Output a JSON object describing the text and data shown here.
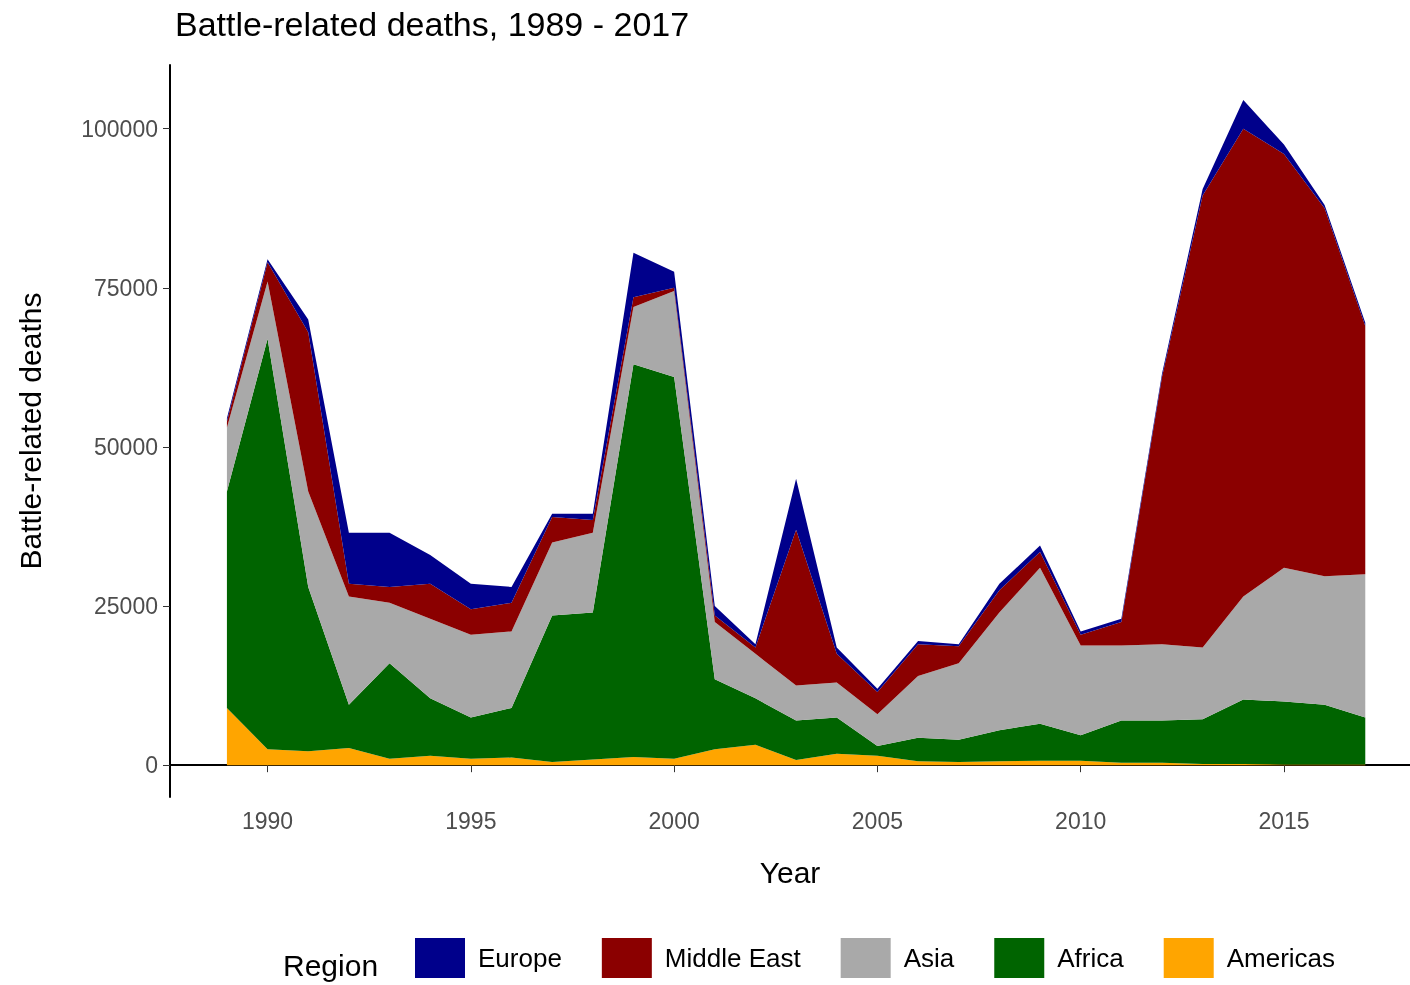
{
  "chart_data": {
    "type": "area",
    "title": "Battle-related deaths, 1989 - 2017",
    "xlabel": "Year",
    "ylabel": "Battle-related deaths",
    "legend_title": "Region",
    "stacked": true,
    "legend": "bottom",
    "grid": false,
    "x": [
      1989,
      1990,
      1991,
      1992,
      1993,
      1994,
      1995,
      1996,
      1997,
      1998,
      1999,
      2000,
      2001,
      2002,
      2003,
      2004,
      2005,
      2006,
      2007,
      2008,
      2009,
      2010,
      2011,
      2012,
      2013,
      2014,
      2015,
      2016,
      2017
    ],
    "xlim": [
      1987.6,
      2018.1
    ],
    "xticks": [
      1990,
      1995,
      2000,
      2005,
      2010,
      2015
    ],
    "ylim": [
      -5000,
      110000
    ],
    "yticks": [
      0,
      25000,
      50000,
      75000,
      100000
    ],
    "series": [
      {
        "name": "Americas",
        "color": "#ffa500",
        "values": [
          9000,
          2500,
          2200,
          2700,
          1000,
          1500,
          1000,
          1200,
          500,
          900,
          1300,
          1000,
          2500,
          3200,
          800,
          1800,
          1500,
          600,
          500,
          600,
          700,
          700,
          400,
          400,
          200,
          200,
          100,
          100,
          100
        ]
      },
      {
        "name": "Africa",
        "color": "#006400",
        "values": [
          34000,
          64500,
          25800,
          6800,
          15000,
          9000,
          6500,
          7800,
          23000,
          23100,
          61700,
          60000,
          11000,
          7300,
          6200,
          5700,
          1500,
          3700,
          3500,
          4900,
          5800,
          4000,
          6600,
          6600,
          7000,
          10100,
          9900,
          9400,
          7400
        ]
      },
      {
        "name": "Asia",
        "color": "#a9a9a9",
        "values": [
          10000,
          9000,
          15000,
          17000,
          9500,
          12500,
          13000,
          12000,
          11500,
          12500,
          9000,
          13500,
          9000,
          7000,
          5500,
          5500,
          5000,
          9700,
          12000,
          18500,
          24500,
          14100,
          11800,
          12000,
          11300,
          16200,
          21000,
          20200,
          22500
        ]
      },
      {
        "name": "Middle East",
        "color": "#8b0000",
        "values": [
          1000,
          3000,
          25000,
          2000,
          2500,
          5500,
          4000,
          4500,
          4000,
          2000,
          1500,
          500,
          1000,
          1000,
          24500,
          4500,
          3500,
          5000,
          2700,
          3500,
          2500,
          1700,
          3700,
          42000,
          71000,
          73500,
          65000,
          57800,
          39000
        ]
      },
      {
        "name": "Europe",
        "color": "#00008b",
        "values": [
          500,
          500,
          2000,
          8000,
          8500,
          4500,
          4000,
          2500,
          500,
          1000,
          7000,
          2500,
          1500,
          500,
          8000,
          1000,
          500,
          500,
          300,
          1000,
          1000,
          500,
          500,
          500,
          1000,
          4500,
          1500,
          500,
          500
        ]
      }
    ]
  }
}
